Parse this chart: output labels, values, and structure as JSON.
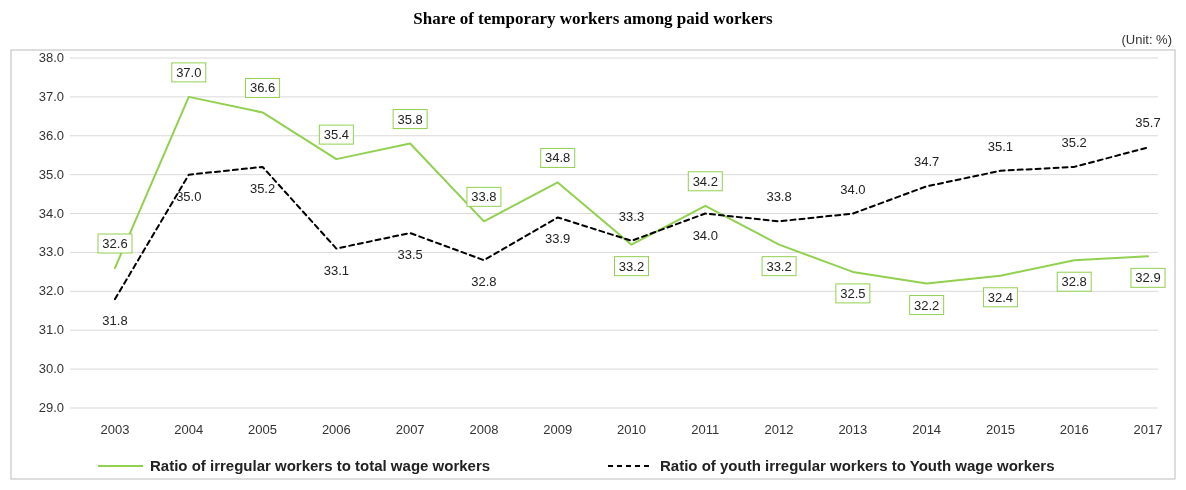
{
  "chart_data": {
    "type": "line",
    "title": "Share of temporary workers among paid workers",
    "annotations": [
      "(Unit: %)"
    ],
    "categories": [
      "2003",
      "2004",
      "2005",
      "2006",
      "2007",
      "2008",
      "2009",
      "2010",
      "2011",
      "2012",
      "2013",
      "2014",
      "2015",
      "2016",
      "2017"
    ],
    "series": [
      {
        "name": "Ratio of irregular workers to total wage workers",
        "color": "#92d050",
        "line_style": "solid",
        "values": [
          32.6,
          37.0,
          36.6,
          35.4,
          35.8,
          33.8,
          34.8,
          33.2,
          34.2,
          33.2,
          32.5,
          32.2,
          32.4,
          32.8,
          32.9
        ],
        "value_labels": [
          "32.6",
          "37.0",
          "36.6",
          "35.4",
          "35.8",
          "33.8",
          "34.8",
          "33.2",
          "34.2",
          "33.2",
          "32.5",
          "32.2",
          "32.4",
          "32.8",
          "32.9"
        ]
      },
      {
        "name": "Ratio of youth irregular workers to Youth wage workers",
        "color": "#000000",
        "line_style": "dashed",
        "values": [
          31.8,
          35.0,
          35.2,
          33.1,
          33.5,
          32.8,
          33.9,
          33.3,
          34.0,
          33.8,
          34.0,
          34.7,
          35.1,
          35.2,
          35.7
        ],
        "value_labels": [
          "31.8",
          "35.0",
          "35.2",
          "33.1",
          "33.5",
          "32.8",
          "33.9",
          "33.3",
          "34.0",
          "33.8",
          "34.0",
          "34.7",
          "35.1",
          "35.2",
          "35.7"
        ]
      }
    ],
    "ylim": [
      29,
      38
    ],
    "yticks": [
      {
        "value": 29,
        "label": "29.0"
      },
      {
        "value": 30,
        "label": "30.0"
      },
      {
        "value": 31,
        "label": "31.0"
      },
      {
        "value": 32,
        "label": "32.0"
      },
      {
        "value": 33,
        "label": "33.0"
      },
      {
        "value": 34,
        "label": "34.0"
      },
      {
        "value": 35,
        "label": "35.0"
      },
      {
        "value": 36,
        "label": "36.0"
      },
      {
        "value": 37,
        "label": "37.0"
      },
      {
        "value": 38,
        "label": "38.0"
      }
    ],
    "grid": "y",
    "legend": "bottom",
    "marker": "none"
  }
}
